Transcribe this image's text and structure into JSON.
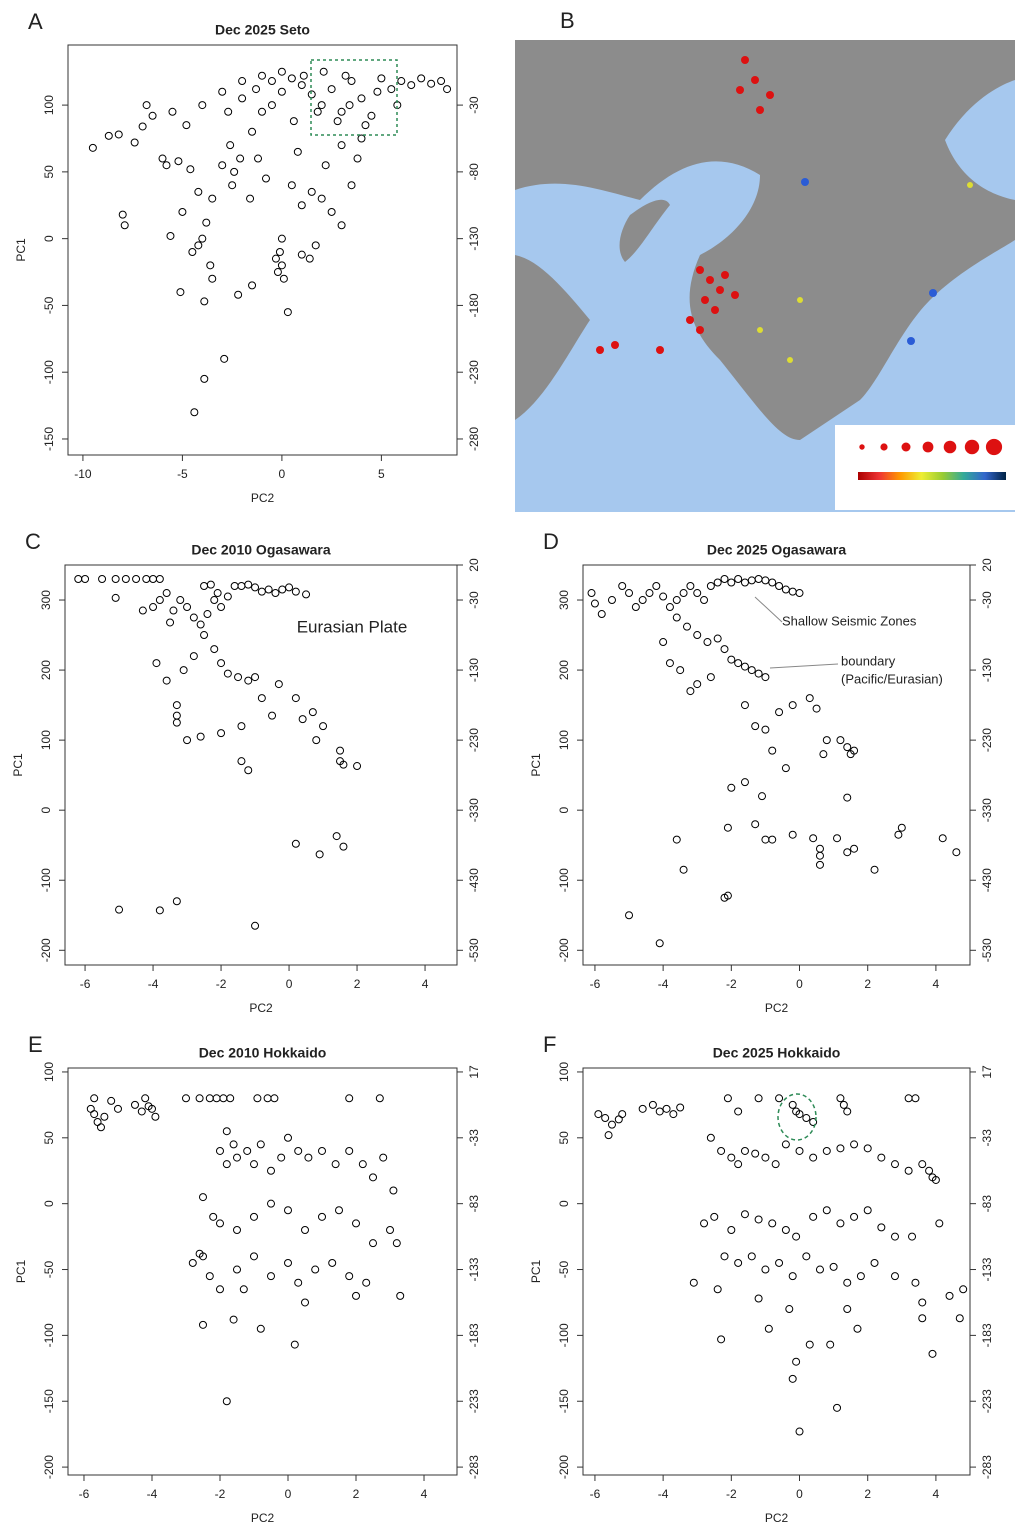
{
  "chart_data": [
    {
      "type": "scatter",
      "panel": "A",
      "title": "Dec 2025 Seto",
      "xlabel": "PC2",
      "ylabel": "PC1",
      "color": "#000000",
      "x": [
        -9.5,
        -8.7,
        -8.2,
        -7.4,
        -7,
        -6.8,
        -6.5,
        -5.5,
        -6,
        -5.8,
        -5.2,
        -4.6,
        -5,
        -8,
        -7.9,
        -5.6,
        -4.2,
        -5.1,
        -4.5,
        -4,
        -3.8,
        -3.6,
        -3.5,
        -3.9,
        -2.2,
        -3.9,
        -2.9,
        -4.4,
        -4.2,
        -3.5,
        -3,
        -2.6,
        -2.4,
        -2.1,
        -2.5,
        -1.6,
        -1.2,
        -1,
        -2,
        -3,
        -4,
        -4.8,
        -1.5,
        -0.5,
        0,
        0.5,
        1,
        1.5,
        2,
        2.5,
        3,
        3.5,
        4,
        4.5,
        5,
        5.5,
        6,
        6.5,
        7,
        7.5,
        8,
        8.3,
        -0.3,
        -0.2,
        0,
        0.1,
        -0.1,
        0,
        0.3,
        0.5,
        1,
        1.5,
        2,
        2.5,
        3,
        3.5,
        3.8,
        3,
        4,
        2.2,
        1.7,
        1.4,
        -1.5,
        0.8,
        -0.8,
        1,
        4.2,
        3.4,
        2.8,
        1.8,
        0.6,
        -0.5,
        -1.3,
        -2.7,
        5.8,
        4.8,
        3.2,
        2.1,
        1.1,
        0,
        -1,
        -2
      ],
      "values": [
        68,
        77,
        78,
        72,
        84,
        100,
        92,
        95,
        60,
        55,
        58,
        52,
        20,
        18,
        10,
        2,
        -5,
        -40,
        -10,
        0,
        12,
        -20,
        -30,
        -47,
        -42,
        -105,
        -90,
        -130,
        35,
        30,
        55,
        70,
        50,
        60,
        40,
        30,
        60,
        95,
        105,
        110,
        100,
        85,
        80,
        100,
        110,
        120,
        115,
        108,
        100,
        112,
        95,
        118,
        105,
        92,
        120,
        112,
        118,
        115,
        120,
        116,
        118,
        112,
        -15,
        -25,
        -20,
        -30,
        -10,
        0,
        -55,
        40,
        25,
        35,
        30,
        20,
        10,
        40,
        60,
        70,
        75,
        55,
        -5,
        -15,
        -35,
        65,
        45,
        -12,
        85,
        100,
        88,
        95,
        88,
        118,
        112,
        95,
        100,
        110,
        122,
        125,
        122,
        125,
        122,
        118
      ],
      "xlim": [
        -10.75,
        8.8
      ],
      "ylim": [
        -162,
        145
      ],
      "y2lim": [
        -292,
        15
      ],
      "xticks": [
        -10,
        -5,
        0,
        5
      ],
      "yticks": [
        -150,
        -100,
        -50,
        0,
        50,
        100
      ],
      "y2ticks": [
        -280,
        -230,
        -180,
        -130,
        -80,
        -30
      ]
    },
    {
      "type": "map",
      "panel": "B"
    },
    {
      "type": "scatter",
      "panel": "C",
      "title": "Dec 2010 Ogasawara",
      "xlabel": "PC2",
      "ylabel": "PC1",
      "color": "#000000",
      "annotations": [
        "Eurasian Plate"
      ],
      "x": [
        -6.2,
        -6,
        -5.5,
        -5.1,
        -4.8,
        -4.5,
        -4.2,
        -4,
        -3.8,
        -5.1,
        -4.3,
        -4,
        -3.8,
        -3.6,
        -3.4,
        -3.2,
        -3,
        -2.8,
        -2.6,
        -2.4,
        -2.2,
        -2,
        -1.8,
        -1.6,
        -1.4,
        -1.2,
        -1,
        -0.8,
        -0.6,
        -0.4,
        -0.2,
        0,
        0.2,
        0.5,
        -2.5,
        -2.3,
        -2.1,
        -3.5,
        -3.9,
        -3.1,
        -2.8,
        -2.5,
        -2.2,
        -2,
        -1.8,
        -1.5,
        -1.2,
        -1,
        -3.3,
        -3.3,
        -3.3,
        -3.6,
        -3,
        -2.6,
        -2,
        -1.4,
        -1.4,
        -1.2,
        -0.5,
        -0.8,
        -0.3,
        0.2,
        0.4,
        0.7,
        0.8,
        1,
        1.5,
        1.5,
        1.6,
        2,
        1.4,
        0.2,
        0.9,
        1.6,
        -5,
        -3.8,
        -3.3,
        -1
      ],
      "values": [
        330,
        330,
        330,
        330,
        330,
        330,
        330,
        330,
        330,
        303,
        285,
        290,
        300,
        310,
        285,
        300,
        290,
        275,
        265,
        280,
        300,
        290,
        305,
        320,
        320,
        322,
        318,
        312,
        315,
        310,
        315,
        318,
        312,
        308,
        320,
        322,
        310,
        268,
        210,
        200,
        220,
        250,
        230,
        210,
        195,
        190,
        185,
        190,
        150,
        125,
        135,
        185,
        100,
        105,
        110,
        120,
        70,
        57,
        135,
        160,
        180,
        160,
        130,
        140,
        100,
        120,
        85,
        70,
        65,
        63,
        -37,
        -48,
        -63,
        -52,
        -142,
        -143,
        -130,
        -165
      ],
      "xlim": [
        -6.59,
        4.94
      ],
      "ylim": [
        -221,
        350
      ],
      "y2lim": [
        -551,
        20
      ],
      "xticks": [
        -6,
        -4,
        -2,
        0,
        2,
        4
      ],
      "yticks": [
        -200,
        -100,
        0,
        100,
        200,
        300
      ],
      "y2ticks": [
        -530,
        -430,
        -330,
        -230,
        -130,
        -30,
        20
      ]
    },
    {
      "type": "scatter",
      "panel": "D",
      "title": "Dec 2025 Ogasawara",
      "xlabel": "PC2",
      "ylabel": "PC1",
      "color": "#000000",
      "annotations": [
        "Shallow Seismic Zones",
        "boundary",
        "(Pacific/Eurasian)"
      ],
      "x": [
        -6.1,
        -6,
        -5.8,
        -5.5,
        -5.2,
        -5,
        -4.8,
        -4.6,
        -4.4,
        -4.2,
        -4,
        -3.8,
        -3.6,
        -3.4,
        -3.2,
        -3,
        -2.8,
        -2.6,
        -2.4,
        -2.2,
        -2,
        -1.8,
        -1.6,
        -1.4,
        -1.2,
        -1,
        -0.8,
        -0.6,
        -0.4,
        -0.2,
        0,
        -3.6,
        -3.3,
        -3,
        -2.7,
        -2.4,
        -2.2,
        -2,
        -1.8,
        -1.6,
        -1.4,
        -1.2,
        -1,
        -4,
        -3.8,
        -3.5,
        -3.2,
        -3,
        -2.6,
        -1.6,
        -1.3,
        -1,
        -0.6,
        -0.2,
        0.3,
        0.5,
        0.8,
        0.7,
        1.2,
        1.4,
        1.6,
        1.5,
        -0.4,
        -0.8,
        -1.6,
        -2,
        -1.1,
        -1.3,
        -2.1,
        -1,
        -0.8,
        -0.2,
        0.4,
        0.6,
        0.6,
        0.6,
        1.1,
        1.4,
        1.6,
        1.4,
        2.2,
        2.9,
        3,
        4.2,
        4.6,
        -3.6,
        -3.4,
        -2.2,
        -2.1,
        -5,
        -4.1
      ],
      "values": [
        310,
        295,
        280,
        300,
        320,
        310,
        290,
        300,
        310,
        320,
        305,
        290,
        300,
        310,
        320,
        310,
        300,
        320,
        325,
        330,
        325,
        330,
        325,
        328,
        330,
        328,
        325,
        320,
        315,
        312,
        310,
        275,
        262,
        250,
        240,
        245,
        230,
        215,
        210,
        205,
        200,
        195,
        190,
        240,
        210,
        200,
        170,
        180,
        190,
        150,
        120,
        115,
        140,
        150,
        160,
        145,
        100,
        80,
        100,
        90,
        85,
        80,
        60,
        85,
        40,
        32,
        20,
        -20,
        -25,
        -42,
        -42,
        -35,
        -40,
        -55,
        -65,
        -78,
        -40,
        -60,
        -55,
        18,
        -85,
        -35,
        -25,
        -40,
        -60,
        -42,
        -85,
        -125,
        -122,
        -150,
        -190
      ],
      "xlim": [
        -6.35,
        5.0
      ],
      "ylim": [
        -221,
        350
      ],
      "y2lim": [
        -551,
        20
      ],
      "xticks": [
        -6,
        -4,
        -2,
        0,
        2,
        4
      ],
      "yticks": [
        -200,
        -100,
        0,
        100,
        200,
        300
      ],
      "y2ticks": [
        -530,
        -430,
        -330,
        -230,
        -130,
        -30,
        20
      ]
    },
    {
      "type": "scatter",
      "panel": "E",
      "title": "Dec 2010 Hokkaido",
      "xlabel": "PC2",
      "ylabel": "PC1",
      "color": "#000000",
      "x": [
        -5.8,
        -5.7,
        -5.6,
        -5.5,
        -5.4,
        -5.2,
        -5.7,
        -5,
        -4.5,
        -4.3,
        -4.2,
        -4,
        -3.9,
        -4.1,
        -3,
        -2.6,
        -2.3,
        -2.1,
        -1.9,
        -1.7,
        -0.9,
        -0.6,
        -0.4,
        1.8,
        2.7,
        -1.8,
        -1.6,
        -1.5,
        -1.8,
        -2,
        -1.2,
        -1,
        -0.8,
        -0.5,
        -0.2,
        0,
        0.3,
        0.6,
        1,
        1.4,
        1.8,
        2.2,
        2.5,
        2.8,
        3.1,
        -2.5,
        -2.2,
        -2,
        -1.5,
        -1,
        -0.5,
        0,
        0.5,
        1,
        1.5,
        2,
        2.5,
        3,
        3.2,
        -2.8,
        -2.5,
        -2.3,
        -2,
        -1.5,
        -1,
        -0.5,
        0,
        0.3,
        0.8,
        1.3,
        1.8,
        2.3,
        3.3,
        -2.5,
        -1.6,
        -0.8,
        0.2,
        -1.8,
        -2.6,
        -1.3,
        0.5,
        2
      ],
      "values": [
        72,
        68,
        62,
        58,
        66,
        78,
        80,
        72,
        75,
        70,
        80,
        72,
        66,
        74,
        80,
        80,
        80,
        80,
        80,
        80,
        80,
        80,
        80,
        80,
        80,
        55,
        45,
        35,
        30,
        40,
        40,
        30,
        45,
        25,
        35,
        50,
        40,
        35,
        40,
        30,
        40,
        30,
        20,
        35,
        10,
        5,
        -10,
        -15,
        -20,
        -10,
        0,
        -5,
        -20,
        -10,
        -5,
        -15,
        -30,
        -20,
        -30,
        -45,
        -40,
        -55,
        -65,
        -50,
        -40,
        -55,
        -45,
        -60,
        -50,
        -45,
        -55,
        -60,
        -70,
        -92,
        -88,
        -95,
        -107,
        -150,
        -38,
        -65,
        -75,
        -70
      ],
      "xlim": [
        -6.47,
        4.97
      ],
      "ylim": [
        -206,
        103
      ],
      "y2lim": [
        -289,
        20
      ],
      "xticks": [
        -6,
        -4,
        -2,
        0,
        2,
        4
      ],
      "yticks": [
        -200,
        -150,
        -100,
        -50,
        0,
        50,
        100
      ],
      "y2ticks": [
        -283,
        -233,
        -183,
        -133,
        -83,
        -33,
        17
      ]
    },
    {
      "type": "scatter",
      "panel": "F",
      "title": "Dec 2025 Hokkaido",
      "xlabel": "PC2",
      "ylabel": "PC1",
      "color": "#000000",
      "x": [
        -5.9,
        -5.7,
        -5.5,
        -5.3,
        -5.6,
        -5.2,
        -4.6,
        -4.3,
        -4.1,
        -3.9,
        -3.7,
        -3.5,
        -2.1,
        -1.8,
        -1.2,
        -0.6,
        -0.2,
        -0.1,
        0,
        0.2,
        0.4,
        1.2,
        1.3,
        1.4,
        3.2,
        3.4,
        -2.6,
        -2.3,
        -2,
        -1.8,
        -1.6,
        -1.3,
        -1,
        -0.7,
        -0.4,
        0,
        0.4,
        0.8,
        1.2,
        1.6,
        2,
        2.4,
        2.8,
        3.2,
        3.6,
        3.8,
        3.9,
        4,
        -2.8,
        -2.5,
        -2,
        -1.6,
        -1.2,
        -0.8,
        -0.4,
        -0.1,
        0.4,
        0.8,
        1.2,
        1.6,
        2,
        2.4,
        2.8,
        3.3,
        4.1,
        -2.2,
        -1.8,
        -1.4,
        -1,
        -0.6,
        -0.2,
        0.2,
        0.6,
        1,
        1.4,
        1.8,
        2.2,
        2.8,
        3.4,
        3.6,
        4.4,
        4.8,
        -3.1,
        -2.4,
        -1.2,
        -0.9,
        -0.3,
        1.4,
        1.7,
        3.6,
        4.7,
        3.9,
        -2.3,
        0.3,
        0.9,
        -0.1,
        -0.2,
        1.1,
        0
      ],
      "values": [
        68,
        65,
        60,
        64,
        52,
        68,
        72,
        75,
        70,
        72,
        68,
        73,
        80,
        70,
        80,
        80,
        75,
        70,
        68,
        65,
        62,
        80,
        75,
        70,
        80,
        80,
        50,
        40,
        35,
        30,
        40,
        38,
        35,
        30,
        45,
        40,
        35,
        40,
        42,
        45,
        42,
        35,
        30,
        25,
        30,
        25,
        20,
        18,
        -15,
        -10,
        -20,
        -8,
        -12,
        -15,
        -20,
        -25,
        -10,
        -5,
        -15,
        -10,
        -5,
        -18,
        -25,
        -25,
        -15,
        -40,
        -45,
        -40,
        -50,
        -45,
        -55,
        -40,
        -50,
        -48,
        -60,
        -55,
        -45,
        -55,
        -60,
        -75,
        -70,
        -65,
        -60,
        -65,
        -72,
        -95,
        -80,
        -80,
        -95,
        -87,
        -87,
        -114,
        -103,
        -107,
        -107,
        -120,
        -133,
        -155,
        -173
      ],
      "xlim": [
        -6.35,
        5.0
      ],
      "ylim": [
        -206,
        103
      ],
      "y2lim": [
        -289,
        20
      ],
      "xticks": [
        -6,
        -4,
        -2,
        0,
        2,
        4
      ],
      "yticks": [
        -200,
        -150,
        -100,
        -50,
        0,
        50,
        100
      ],
      "y2ticks": [
        -283,
        -233,
        -183,
        -133,
        -83,
        -33,
        17
      ]
    }
  ]
}
